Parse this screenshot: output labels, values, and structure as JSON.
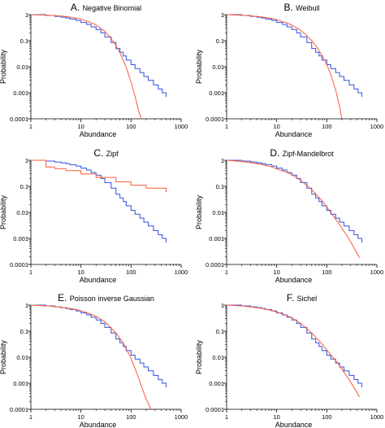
{
  "colors": {
    "observed": "#3050e0",
    "fitted": "#ff5a36",
    "axes": "#000000"
  },
  "chart_data": [
    {
      "type": "line",
      "panel_letter": "A.",
      "panel_name": "Negative Binomial",
      "xlabel": "Abundance",
      "ylabel": "Probability",
      "xscale": "log",
      "yscale": "log",
      "xlim": [
        1,
        1000
      ],
      "ylim": [
        0.0001,
        1
      ],
      "xticks": [
        "1",
        "10",
        "100",
        "1000"
      ],
      "yticks": [
        "0.0001",
        "0.001",
        "0.01",
        "0.1",
        "1"
      ],
      "series": [
        {
          "role": "observed",
          "type": "step",
          "x": [
            1,
            2,
            3,
            4,
            5,
            6,
            8,
            10,
            13,
            16,
            20,
            25,
            30,
            40,
            50,
            60,
            70,
            80,
            100,
            120,
            150,
            180,
            220,
            280,
            350,
            420,
            500
          ],
          "y": [
            1,
            0.93,
            0.86,
            0.8,
            0.74,
            0.68,
            0.6,
            0.5,
            0.42,
            0.34,
            0.27,
            0.2,
            0.14,
            0.085,
            0.05,
            0.036,
            0.026,
            0.018,
            0.012,
            0.0085,
            0.006,
            0.0042,
            0.003,
            0.002,
            0.0014,
            0.001,
            0.0007
          ]
        },
        {
          "role": "fitted",
          "type": "line",
          "x": [
            1,
            2,
            3,
            5,
            8,
            10,
            15,
            20,
            30,
            40,
            50,
            60,
            70,
            80,
            100,
            120,
            140,
            160
          ],
          "y": [
            1,
            0.96,
            0.92,
            0.85,
            0.74,
            0.67,
            0.52,
            0.4,
            0.23,
            0.12,
            0.065,
            0.034,
            0.018,
            0.0095,
            0.0026,
            0.00075,
            0.00022,
            0.0001
          ]
        }
      ]
    },
    {
      "type": "line",
      "panel_letter": "B.",
      "panel_name": "Weibull",
      "xlabel": "Abundance",
      "ylabel": "Probability",
      "xscale": "log",
      "yscale": "log",
      "xlim": [
        1,
        1000
      ],
      "ylim": [
        0.0001,
        1
      ],
      "xticks": [
        "1",
        "10",
        "100",
        "1000"
      ],
      "yticks": [
        "0.0001",
        "0.001",
        "0.01",
        "0.1",
        "1"
      ],
      "series": [
        {
          "role": "observed",
          "type": "step",
          "x": [
            1,
            2,
            3,
            4,
            5,
            6,
            8,
            10,
            13,
            16,
            20,
            25,
            30,
            40,
            50,
            60,
            70,
            80,
            100,
            120,
            150,
            180,
            220,
            280,
            350,
            420,
            500
          ],
          "y": [
            1,
            0.93,
            0.86,
            0.8,
            0.74,
            0.68,
            0.6,
            0.5,
            0.42,
            0.34,
            0.27,
            0.2,
            0.14,
            0.085,
            0.05,
            0.036,
            0.026,
            0.018,
            0.012,
            0.0085,
            0.006,
            0.0042,
            0.003,
            0.002,
            0.0014,
            0.001,
            0.0007
          ]
        },
        {
          "role": "fitted",
          "type": "line",
          "x": [
            1,
            2,
            3,
            5,
            8,
            10,
            15,
            20,
            30,
            40,
            50,
            60,
            80,
            100,
            120,
            150,
            180,
            200
          ],
          "y": [
            1,
            0.95,
            0.9,
            0.82,
            0.71,
            0.64,
            0.5,
            0.4,
            0.25,
            0.16,
            0.1,
            0.065,
            0.028,
            0.012,
            0.005,
            0.0013,
            0.0003,
            0.0001
          ]
        }
      ]
    },
    {
      "type": "line",
      "panel_letter": "C.",
      "panel_name": "Zipf",
      "xlabel": "Abundance",
      "ylabel": "Probability",
      "xscale": "log",
      "yscale": "log",
      "xlim": [
        1,
        1000
      ],
      "ylim": [
        0.0001,
        1
      ],
      "xticks": [
        "1",
        "10",
        "100",
        "1000"
      ],
      "yticks": [
        "0.0001",
        "0.001",
        "0.01",
        "0.1",
        "1"
      ],
      "series": [
        {
          "role": "observed",
          "type": "step",
          "x": [
            1,
            2,
            3,
            4,
            5,
            6,
            8,
            10,
            13,
            16,
            20,
            25,
            30,
            40,
            50,
            60,
            70,
            80,
            100,
            120,
            150,
            180,
            220,
            280,
            350,
            420,
            500
          ],
          "y": [
            1,
            0.93,
            0.86,
            0.8,
            0.74,
            0.68,
            0.6,
            0.5,
            0.42,
            0.34,
            0.27,
            0.2,
            0.14,
            0.085,
            0.05,
            0.036,
            0.026,
            0.018,
            0.012,
            0.0085,
            0.006,
            0.0042,
            0.003,
            0.002,
            0.0014,
            0.001,
            0.0007
          ]
        },
        {
          "role": "fitted",
          "type": "step",
          "x": [
            1,
            2,
            3,
            5,
            10,
            20,
            50,
            100,
            200,
            500
          ],
          "y": [
            1,
            0.55,
            0.48,
            0.4,
            0.3,
            0.22,
            0.15,
            0.11,
            0.085,
            0.06
          ]
        }
      ]
    },
    {
      "type": "line",
      "panel_letter": "D.",
      "panel_name": "Zipf-Mandelbrot",
      "xlabel": "Abundance",
      "ylabel": "Probability",
      "xscale": "log",
      "yscale": "log",
      "xlim": [
        1,
        1000
      ],
      "ylim": [
        0.0001,
        1
      ],
      "xticks": [
        "1",
        "10",
        "100",
        "1000"
      ],
      "yticks": [
        "0.0001",
        "0.001",
        "0.01",
        "0.1",
        "1"
      ],
      "series": [
        {
          "role": "observed",
          "type": "step",
          "x": [
            1,
            2,
            3,
            4,
            5,
            6,
            8,
            10,
            13,
            16,
            20,
            25,
            30,
            40,
            50,
            60,
            70,
            80,
            100,
            120,
            150,
            180,
            220,
            280,
            350,
            420,
            500
          ],
          "y": [
            1,
            0.93,
            0.86,
            0.8,
            0.74,
            0.68,
            0.6,
            0.5,
            0.42,
            0.34,
            0.27,
            0.2,
            0.14,
            0.085,
            0.05,
            0.036,
            0.026,
            0.018,
            0.012,
            0.0085,
            0.006,
            0.0042,
            0.003,
            0.002,
            0.0014,
            0.001,
            0.0007
          ]
        },
        {
          "role": "fitted",
          "type": "line",
          "x": [
            1,
            2,
            3,
            5,
            8,
            10,
            15,
            20,
            30,
            50,
            80,
            100,
            150,
            200,
            300,
            450
          ],
          "y": [
            1,
            0.9,
            0.81,
            0.69,
            0.55,
            0.47,
            0.36,
            0.28,
            0.17,
            0.075,
            0.028,
            0.016,
            0.0055,
            0.0025,
            0.00075,
            0.00018
          ]
        }
      ]
    },
    {
      "type": "line",
      "panel_letter": "E.",
      "panel_name": "Poisson inverse Gaussian",
      "xlabel": "Abundance",
      "ylabel": "Probability",
      "xscale": "log",
      "yscale": "log",
      "xlim": [
        1,
        1000
      ],
      "ylim": [
        0.0001,
        1
      ],
      "xticks": [
        "1",
        "10",
        "100",
        "1000"
      ],
      "yticks": [
        "0.0001",
        "0.001",
        "0.01",
        "0.1",
        "1"
      ],
      "series": [
        {
          "role": "observed",
          "type": "step",
          "x": [
            1,
            2,
            3,
            4,
            5,
            6,
            8,
            10,
            13,
            16,
            20,
            25,
            30,
            40,
            50,
            60,
            70,
            80,
            100,
            120,
            150,
            180,
            220,
            280,
            350,
            420,
            500
          ],
          "y": [
            1,
            0.93,
            0.86,
            0.8,
            0.74,
            0.68,
            0.6,
            0.5,
            0.42,
            0.34,
            0.27,
            0.2,
            0.14,
            0.085,
            0.05,
            0.036,
            0.026,
            0.018,
            0.012,
            0.0085,
            0.006,
            0.0042,
            0.003,
            0.002,
            0.0014,
            0.001,
            0.0007
          ]
        },
        {
          "role": "fitted",
          "type": "line",
          "x": [
            1,
            2,
            3,
            5,
            8,
            10,
            15,
            20,
            30,
            50,
            70,
            100,
            130,
            160,
            200,
            250
          ],
          "y": [
            1,
            0.94,
            0.88,
            0.79,
            0.68,
            0.61,
            0.47,
            0.37,
            0.23,
            0.085,
            0.035,
            0.009,
            0.0025,
            0.0008,
            0.00025,
            0.0001
          ]
        }
      ]
    },
    {
      "type": "line",
      "panel_letter": "F.",
      "panel_name": "Sichel",
      "xlabel": "Abundance",
      "ylabel": "Probability",
      "xscale": "log",
      "yscale": "log",
      "xlim": [
        1,
        1000
      ],
      "ylim": [
        0.0001,
        1
      ],
      "xticks": [
        "1",
        "10",
        "100",
        "1000"
      ],
      "yticks": [
        "0.0001",
        "0.001",
        "0.01",
        "0.1",
        "1"
      ],
      "series": [
        {
          "role": "observed",
          "type": "step",
          "x": [
            1,
            2,
            3,
            4,
            5,
            6,
            8,
            10,
            13,
            16,
            20,
            25,
            30,
            40,
            50,
            60,
            70,
            80,
            100,
            120,
            150,
            180,
            220,
            280,
            350,
            420,
            500
          ],
          "y": [
            1,
            0.93,
            0.86,
            0.8,
            0.74,
            0.68,
            0.6,
            0.5,
            0.42,
            0.34,
            0.27,
            0.2,
            0.14,
            0.085,
            0.05,
            0.036,
            0.026,
            0.018,
            0.012,
            0.0085,
            0.006,
            0.0042,
            0.003,
            0.002,
            0.0014,
            0.001,
            0.0007
          ]
        },
        {
          "role": "fitted",
          "type": "line",
          "x": [
            1,
            2,
            3,
            5,
            8,
            10,
            15,
            20,
            30,
            50,
            80,
            100,
            150,
            200,
            300,
            450
          ],
          "y": [
            1,
            0.93,
            0.86,
            0.75,
            0.62,
            0.54,
            0.42,
            0.33,
            0.2,
            0.085,
            0.033,
            0.019,
            0.0075,
            0.0035,
            0.0011,
            0.0003
          ]
        }
      ]
    }
  ]
}
